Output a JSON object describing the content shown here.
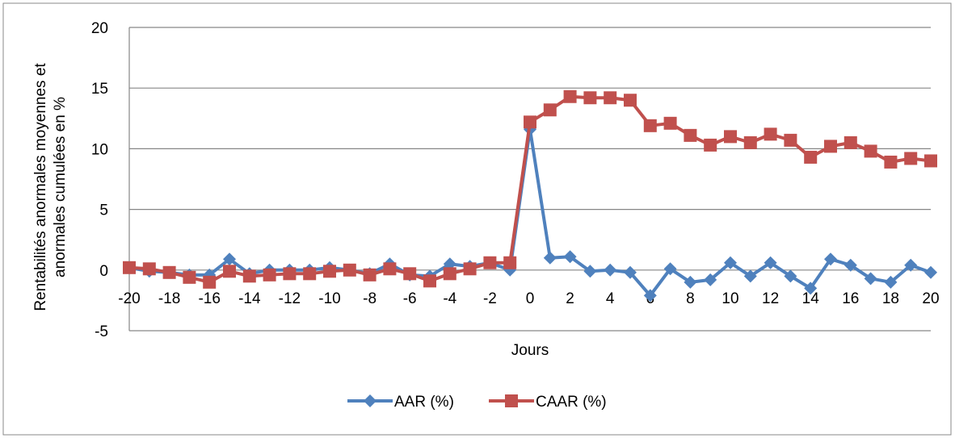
{
  "chart_data": {
    "type": "line",
    "xlabel": "Jours",
    "ylabel_lines": [
      "Rentabilités anormales moyennes  et",
      "anormales cumulées en %"
    ],
    "x": [
      -20,
      -19,
      -18,
      -17,
      -16,
      -15,
      -14,
      -13,
      -12,
      -11,
      -10,
      -9,
      -8,
      -7,
      -6,
      -5,
      -4,
      -3,
      -2,
      -1,
      0,
      1,
      2,
      3,
      4,
      5,
      6,
      7,
      8,
      9,
      10,
      11,
      12,
      13,
      14,
      15,
      16,
      17,
      18,
      19,
      20
    ],
    "x_tick_labels": [
      "-20",
      "-18",
      "-16",
      "-14",
      "-12",
      "-10",
      "-8",
      "-6",
      "-4",
      "-2",
      "0",
      "2",
      "4",
      "6",
      "8",
      "10",
      "12",
      "14",
      "16",
      "18",
      "20"
    ],
    "y_tick_labels": [
      "20",
      "15",
      "10",
      "5",
      "0",
      "-5"
    ],
    "ylim": [
      -5,
      20
    ],
    "grid": "horizontal",
    "legend_position": "bottom",
    "series": [
      {
        "name": "AAR (%)",
        "color": "#4F81BD",
        "marker": "diamond",
        "values": [
          0.2,
          -0.1,
          -0.2,
          -0.4,
          -0.4,
          0.9,
          -0.3,
          0.0,
          0.0,
          0.0,
          0.2,
          0.0,
          -0.3,
          0.5,
          -0.4,
          -0.5,
          0.5,
          0.3,
          0.6,
          0.0,
          11.6,
          1.0,
          1.1,
          -0.1,
          0.0,
          -0.2,
          -2.1,
          0.1,
          -1.0,
          -0.8,
          0.6,
          -0.5,
          0.6,
          -0.5,
          -1.5,
          0.9,
          0.4,
          -0.7,
          -1.0,
          0.4,
          -0.2
        ]
      },
      {
        "name": "CAAR (%)",
        "color": "#C0504D",
        "marker": "square",
        "values": [
          0.2,
          0.1,
          -0.2,
          -0.6,
          -1.0,
          -0.1,
          -0.5,
          -0.4,
          -0.3,
          -0.3,
          -0.1,
          0.0,
          -0.4,
          0.1,
          -0.3,
          -0.9,
          -0.3,
          0.1,
          0.6,
          0.6,
          12.2,
          13.2,
          14.3,
          14.2,
          14.2,
          14.0,
          11.9,
          12.1,
          11.1,
          10.3,
          11.0,
          10.5,
          11.2,
          10.7,
          9.3,
          10.2,
          10.5,
          9.8,
          8.9,
          9.2,
          9.0
        ]
      }
    ]
  }
}
